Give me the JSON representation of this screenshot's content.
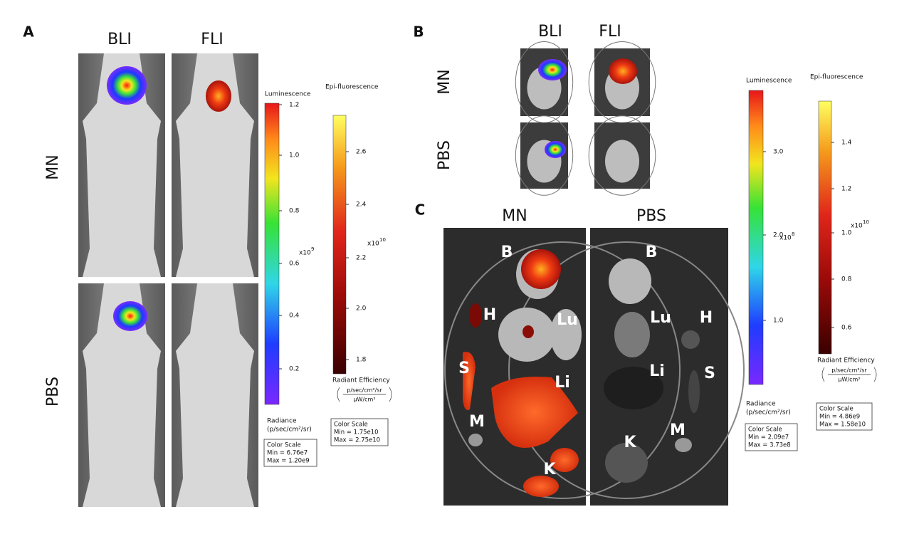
{
  "panel_a": {
    "label": "A",
    "columns": [
      "BLI",
      "FLI"
    ],
    "rows": [
      "MN",
      "PBS"
    ],
    "luminescence_scale": {
      "title": "Luminescence",
      "ticks": [
        "1.2",
        "1.0",
        "0.8",
        "0.6",
        "0.4",
        "0.2"
      ],
      "multiplier": "x10",
      "exponent": "9",
      "unit_title": "Radiance",
      "unit": "(p/sec/cm²/sr)",
      "box": [
        "Color Scale",
        "Min = 6.76e7",
        "Max = 1.20e9"
      ]
    },
    "fluorescence_scale": {
      "title": "Epi-fluorescence",
      "ticks": [
        "2.6",
        "2.4",
        "2.2",
        "2.0",
        "1.8"
      ],
      "multiplier": "x10",
      "exponent": "10",
      "unit_title": "Radiant Efficiency",
      "unit_numerator": "p/sec/cm²/sr",
      "unit_denominator": "µW/cm²",
      "box": [
        "Color Scale",
        "Min = 1.75e10",
        "Max = 2.75e10"
      ]
    }
  },
  "panel_b": {
    "label": "B",
    "columns": [
      "BLI",
      "FLI"
    ],
    "rows": [
      "MN",
      "PBS"
    ]
  },
  "panel_c": {
    "label": "C",
    "columns": [
      "MN",
      "PBS"
    ],
    "organs_mn": [
      "B",
      "H",
      "Lu",
      "S",
      "Li",
      "M",
      "K"
    ],
    "organs_pbs": [
      "B",
      "Lu",
      "H",
      "Li",
      "S",
      "K",
      "M"
    ],
    "luminescence_scale": {
      "title": "Luminescence",
      "ticks": [
        "3.0",
        "2.0",
        "1.0"
      ],
      "multiplier": "x10",
      "exponent": "8",
      "unit_title": "Radiance",
      "unit": "(p/sec/cm²/sr)",
      "box": [
        "Color Scale",
        "Min = 2.09e7",
        "Max = 3.73e8"
      ]
    },
    "fluorescence_scale": {
      "title": "Epi-fluorescence",
      "ticks": [
        "1.4",
        "1.2",
        "1.0",
        "0.8",
        "0.6"
      ],
      "multiplier": "x10",
      "exponent": "10",
      "unit_title": "Radiant Efficiency",
      "unit_numerator": "p/sec/cm²/sr",
      "unit_denominator": "µW/cm²",
      "box": [
        "Color Scale",
        "Min = 4.86e9",
        "Max = 1.58e10"
      ]
    }
  }
}
